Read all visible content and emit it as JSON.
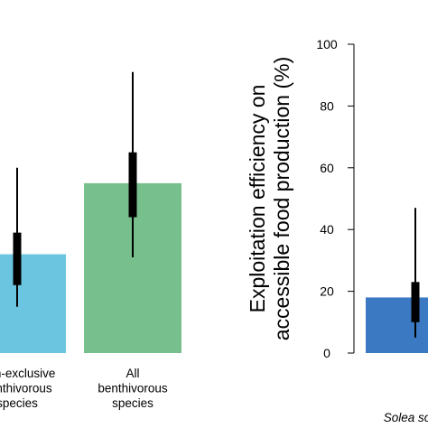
{
  "chart_data": [
    {
      "type": "bar",
      "panel": "left",
      "categories": [
        [
          "Non-exclusive",
          "benthivorous",
          "species"
        ],
        [
          "All",
          "benthivorous",
          "species"
        ]
      ],
      "values": [
        32,
        55
      ],
      "inner_interval": [
        [
          22,
          39
        ],
        [
          44,
          65
        ]
      ],
      "outer_interval": [
        [
          15,
          60
        ],
        [
          31,
          91
        ]
      ],
      "colors": [
        "#6cc5e0",
        "#77c08d"
      ],
      "ylim": [
        0,
        100
      ],
      "title": "",
      "ylabel": ""
    },
    {
      "type": "bar",
      "panel": "right",
      "categories": [
        [
          "Solea solea"
        ]
      ],
      "values": [
        18
      ],
      "inner_interval": [
        [
          10,
          23
        ]
      ],
      "outer_interval": [
        [
          5,
          47
        ]
      ],
      "colors": [
        "#3b7ac2"
      ],
      "ylim": [
        0,
        100
      ],
      "yticks": [
        0,
        20,
        40,
        60,
        80,
        100
      ],
      "ylabel": [
        "Exploitation efficiency on",
        "accessible food production (%)"
      ],
      "title": ""
    }
  ],
  "colors": {
    "interval": "#000000",
    "axis": "#000000"
  }
}
